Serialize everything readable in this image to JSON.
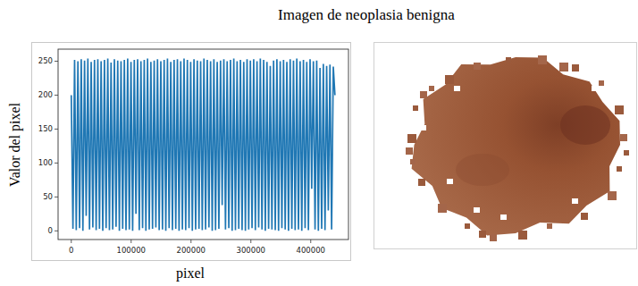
{
  "chart_data": {
    "type": "line",
    "title": "Imagen de neoplasia benigna",
    "x_label": "pixel",
    "y_label": "Valor del pixel",
    "color": "#1f77b4",
    "xlim": [
      -22050,
      463050
    ],
    "ylim": [
      -12.75,
      267.75
    ],
    "xticks": [
      0,
      100000,
      200000,
      300000,
      400000
    ],
    "yticks": [
      0,
      50,
      100,
      150,
      200,
      250
    ],
    "grid": false,
    "x": [
      0,
      2770,
      5540,
      8310,
      11080,
      13850,
      16620,
      19390,
      22160,
      24930,
      27700,
      30470,
      33240,
      36010,
      38780,
      41550,
      44320,
      47090,
      49860,
      52630,
      55400,
      58170,
      60940,
      63710,
      66480,
      69250,
      72020,
      74790,
      77560,
      80330,
      83100,
      85870,
      88640,
      91410,
      94180,
      96950,
      99720,
      102490,
      105260,
      108030,
      110800,
      113570,
      116340,
      119110,
      121880,
      124650,
      127420,
      130190,
      132960,
      135730,
      138500,
      141270,
      144040,
      146810,
      149580,
      152350,
      155120,
      157890,
      160660,
      163430,
      166200,
      168970,
      171740,
      174510,
      177280,
      180050,
      182820,
      185590,
      188360,
      191130,
      193900,
      196670,
      199440,
      202210,
      204980,
      207750,
      210520,
      213290,
      216060,
      218830,
      221600,
      224370,
      227140,
      229910,
      232680,
      235450,
      238220,
      240990,
      243760,
      246530,
      249300,
      252070,
      254840,
      257610,
      260380,
      263150,
      265920,
      268690,
      271460,
      274230,
      277000,
      279770,
      282540,
      285310,
      288080,
      290850,
      293620,
      296390,
      299160,
      301930,
      304700,
      307470,
      310240,
      313010,
      315780,
      318550,
      321320,
      324090,
      326860,
      329630,
      332400,
      335170,
      337940,
      340710,
      343480,
      346250,
      349020,
      351790,
      354560,
      357330,
      360100,
      362870,
      365640,
      368410,
      371180,
      373950,
      376720,
      379490,
      382260,
      385030,
      387800,
      390570,
      393340,
      396110,
      398880,
      401650,
      404420,
      407190,
      409960,
      412730,
      415500,
      418270,
      421040,
      423810,
      426580,
      429350,
      432120,
      434890,
      437660,
      440430
    ],
    "values": [
      200,
      3,
      252,
      1,
      250,
      4,
      253,
      0,
      251,
      22,
      254,
      2,
      249,
      5,
      252,
      1,
      253,
      3,
      250,
      0,
      252,
      4,
      254,
      1,
      248,
      2,
      253,
      6,
      251,
      0,
      250,
      3,
      252,
      1,
      254,
      2,
      249,
      0,
      252,
      25,
      253,
      1,
      250,
      4,
      252,
      0,
      254,
      2,
      249,
      3,
      251,
      5,
      253,
      1,
      250,
      2,
      252,
      0,
      254,
      4,
      249,
      1,
      252,
      3,
      253,
      0,
      250,
      2,
      254,
      1,
      252,
      4,
      249,
      0,
      253,
      2,
      251,
      3,
      250,
      1,
      254,
      2,
      252,
      5,
      250,
      0,
      253,
      1,
      249,
      3,
      251,
      38,
      253,
      2,
      250,
      4,
      252,
      0,
      254,
      1,
      250,
      3,
      252,
      1,
      249,
      0,
      253,
      2,
      251,
      4,
      253,
      1,
      250,
      5,
      254,
      2,
      252,
      0,
      249,
      3,
      243,
      2,
      251,
      1,
      253,
      0,
      250,
      4,
      252,
      2,
      249,
      0,
      253,
      3,
      251,
      1,
      254,
      2,
      250,
      0,
      252,
      4,
      249,
      1,
      253,
      62,
      250,
      2,
      251,
      0,
      240,
      3,
      246,
      1,
      243,
      30,
      245,
      2,
      242,
      200
    ]
  }
}
